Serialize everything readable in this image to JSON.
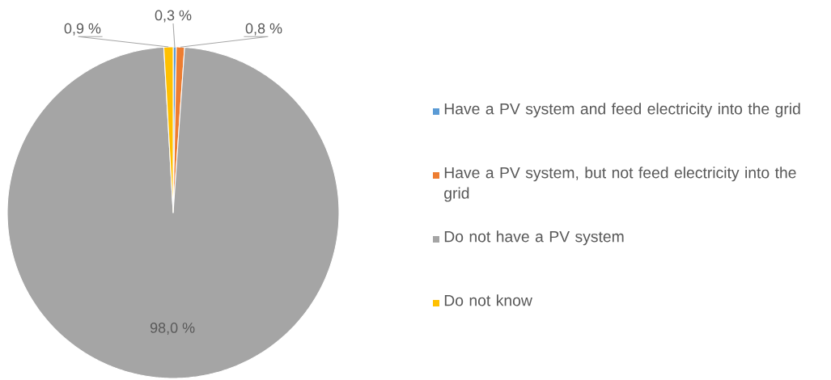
{
  "chart_data": {
    "type": "pie",
    "categories": [
      "Have a PV system and feed electricity into the grid",
      "Have a PV system, but not feed electricity into the grid",
      "Do not have a PV system",
      "Do not know"
    ],
    "values": [
      0.3,
      0.8,
      98.0,
      0.9
    ],
    "colors": [
      "#5b9bd5",
      "#ed7d31",
      "#a5a5a5",
      "#ffc000"
    ],
    "value_labels": [
      "0,3 %",
      "0,8 %",
      "98,0 %",
      "0,9 %"
    ],
    "legend": "right"
  }
}
